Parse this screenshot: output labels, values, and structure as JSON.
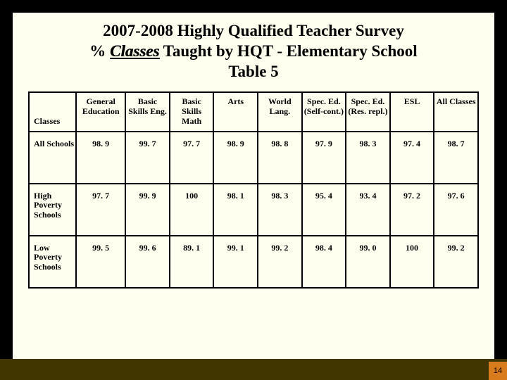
{
  "title": {
    "line1": "2007-2008 Highly Qualified Teacher Survey",
    "line2_pre": "% ",
    "line2_underlined": "Classes",
    "line2_post": " Taught by HQT - Elementary School",
    "line3": "Table 5"
  },
  "table": {
    "corner_label": "Classes",
    "columns": [
      "General Education",
      "Basic Skills Eng.",
      "Basic Skills Math",
      "Arts",
      "World Lang.",
      "Spec. Ed. (Self-cont.)",
      "Spec. Ed. (Res. repl.)",
      "ESL",
      "All Classes"
    ],
    "rows": [
      {
        "label": "All Schools",
        "values": [
          "98. 9",
          "99. 7",
          "97. 7",
          "98. 9",
          "98. 8",
          "97. 9",
          "98. 3",
          "97. 4",
          "98. 7"
        ]
      },
      {
        "label": "High Poverty Schools",
        "values": [
          "97. 7",
          "99. 9",
          "100",
          "98. 1",
          "98. 3",
          "95. 4",
          "93. 4",
          "97. 2",
          "97. 6"
        ]
      },
      {
        "label": "Low Poverty Schools",
        "values": [
          "99. 5",
          "99. 6",
          "89. 1",
          "99. 1",
          "99. 2",
          "98. 4",
          "99. 0",
          "100",
          "99. 2"
        ]
      }
    ]
  },
  "page_number": "14",
  "colors": {
    "slide_bg": "#fffff0",
    "outer_bg": "#000000",
    "footer_bar": "#423600",
    "page_box": "#d87b1c"
  }
}
